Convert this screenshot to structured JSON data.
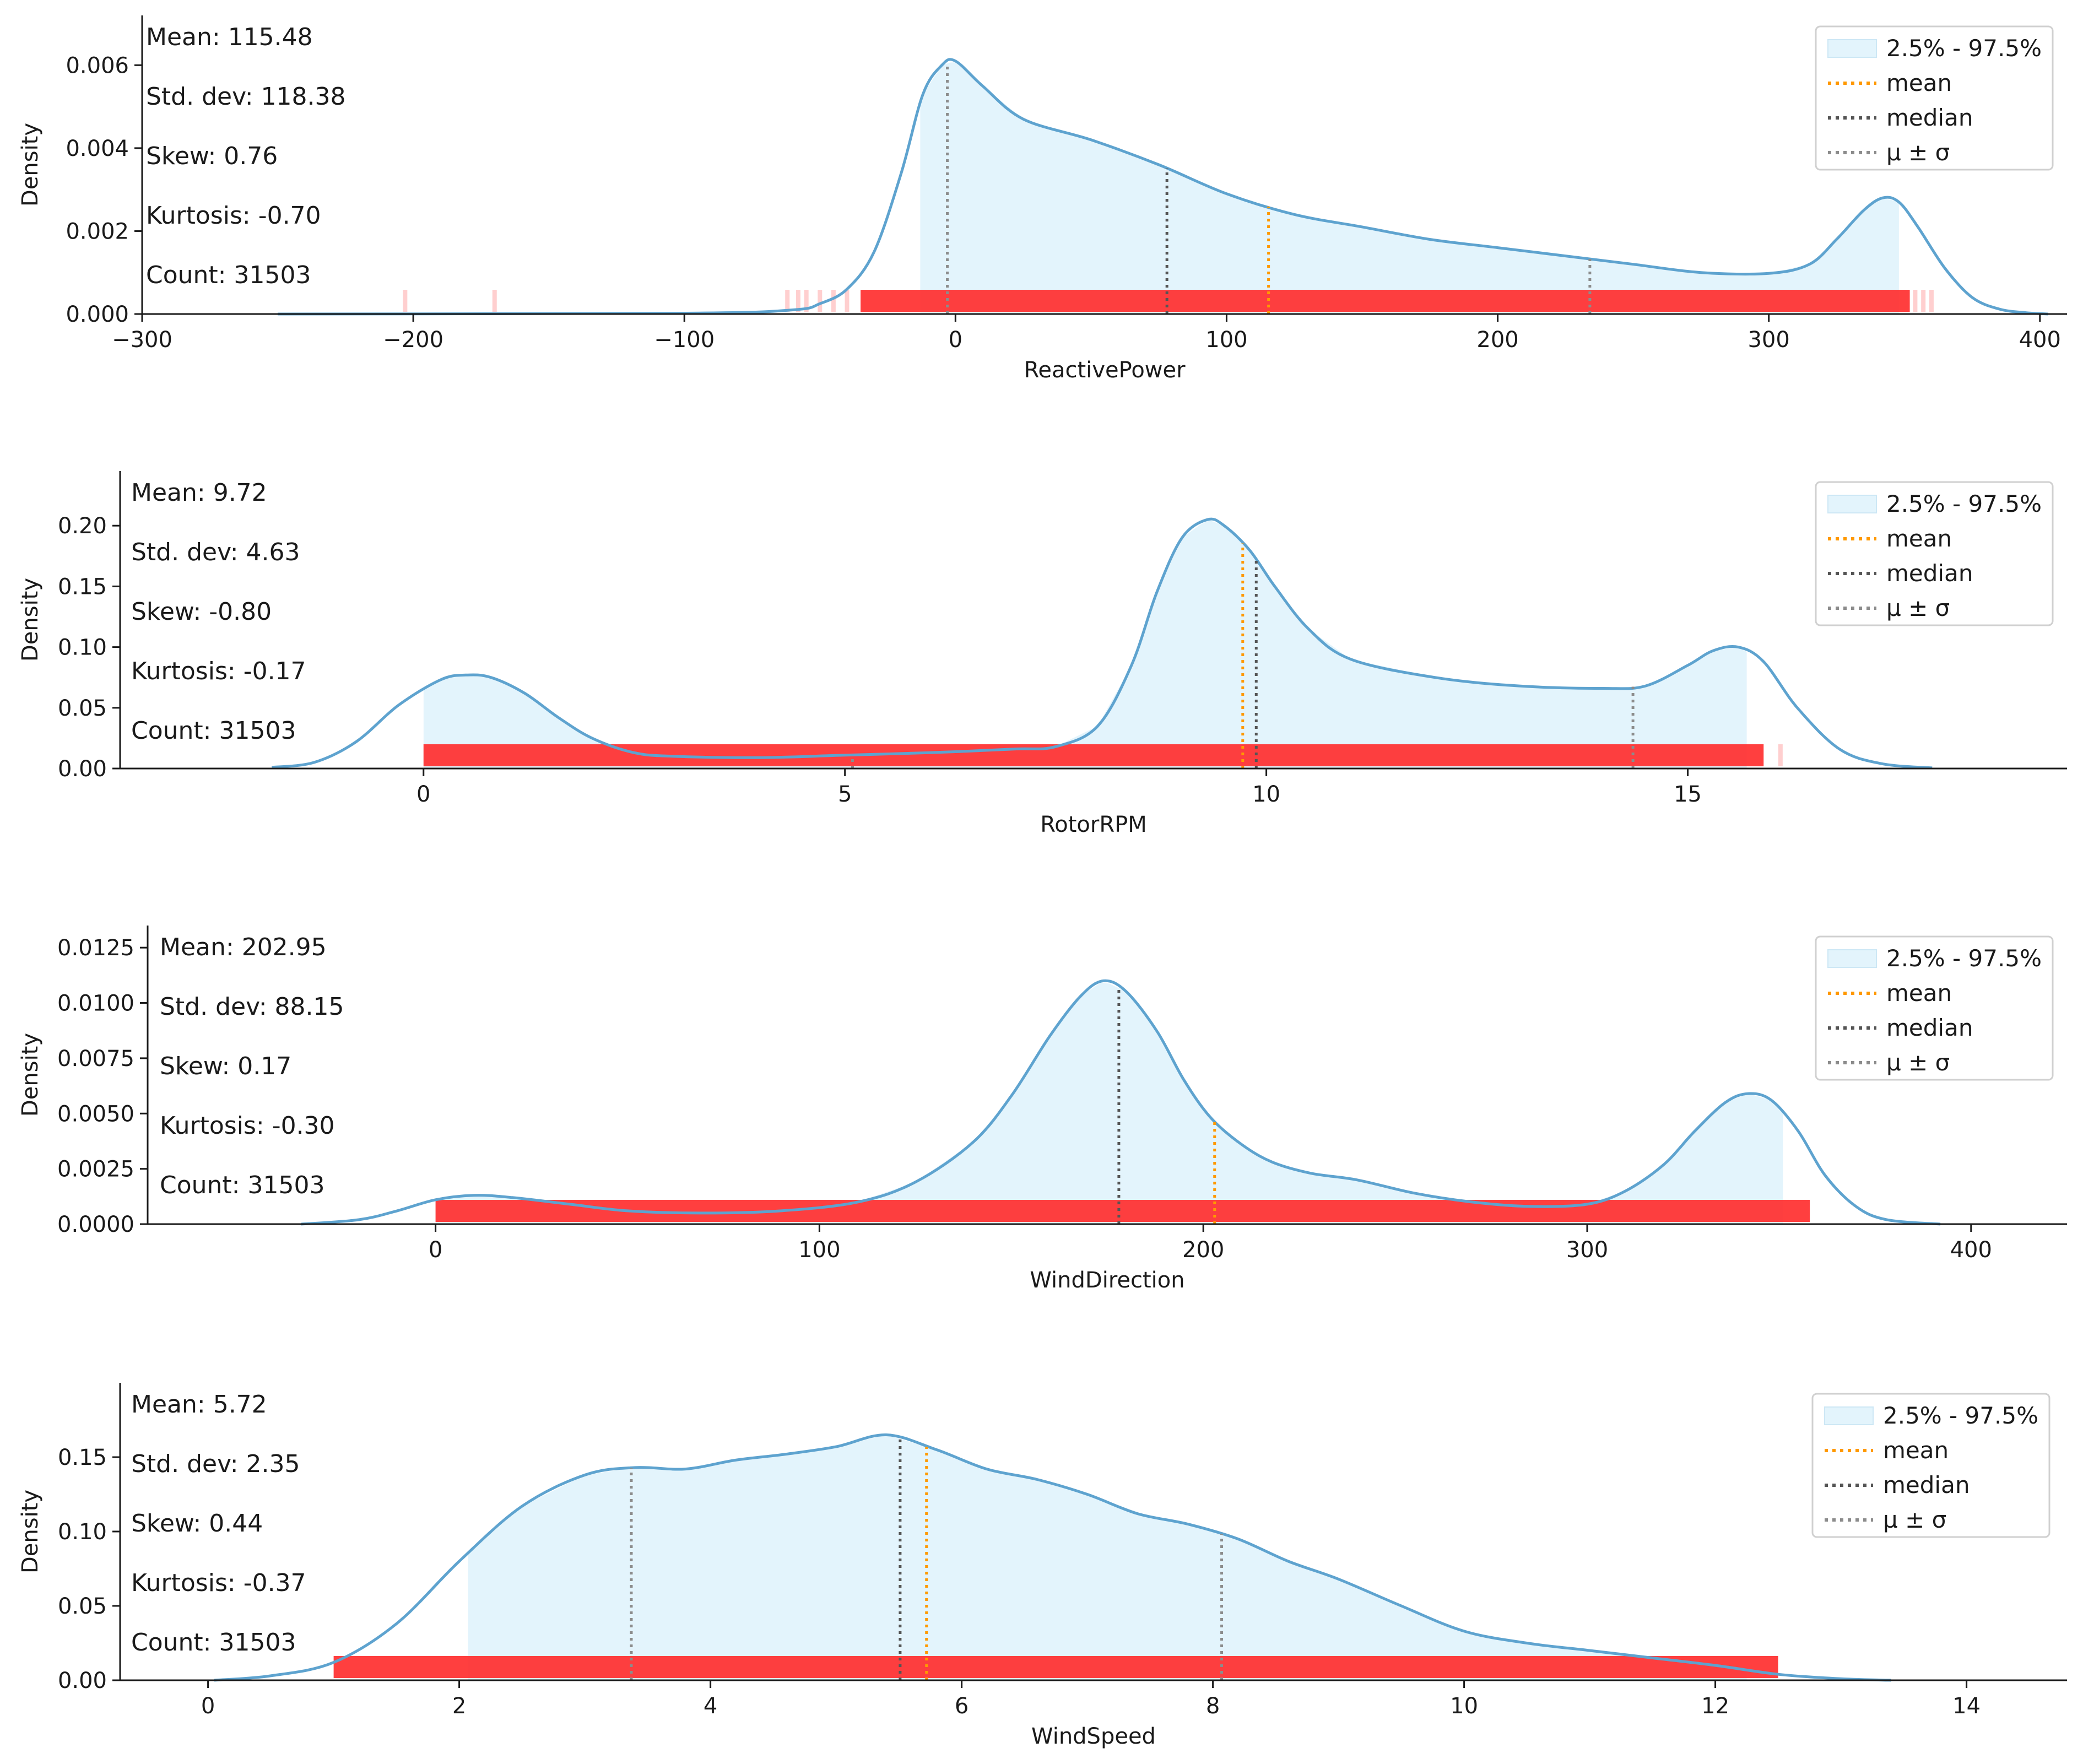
{
  "colors": {
    "kde_line": "#5ea3cf",
    "fill": "#e3f4fc",
    "rug": "#ff2a2a",
    "mean": "#ff9900",
    "median": "#555555",
    "sigma": "#8c8c8c",
    "axis": "#1a1a1a"
  },
  "legend_labels": [
    "2.5% - 97.5%",
    "mean",
    "median",
    "μ ± σ"
  ],
  "chart_data": [
    {
      "type": "line",
      "xlabel": "ReactivePower",
      "ylabel": "Density",
      "xlim": [
        -300,
        410
      ],
      "ylim": [
        0,
        0.0072
      ],
      "xticks": [
        -300,
        -200,
        -100,
        0,
        100,
        200,
        300,
        400
      ],
      "xtick_labels": [
        "−300",
        "−200",
        "−100",
        "0",
        "100",
        "200",
        "300",
        "400"
      ],
      "yticks": [
        0,
        0.002,
        0.004,
        0.006
      ],
      "ytick_labels": [
        "0.000",
        "0.002",
        "0.004",
        "0.006"
      ],
      "stats": [
        "Mean: 115.48",
        "Std. dev: 118.38",
        "Skew: 0.76",
        "Kurtosis: -0.70",
        "Count: 31503"
      ],
      "mean": 115.48,
      "median": 78,
      "sigma_lines": [
        -3,
        234
      ],
      "fill_range": [
        -13,
        348
      ],
      "rug_range": [
        -35,
        352
      ],
      "rug_sparse": [
        -203,
        -170,
        -62,
        -58,
        -55,
        -50,
        -45,
        -40,
        354,
        357,
        360
      ],
      "kde": {
        "x": [
          -250,
          -100,
          -60,
          -50,
          -40,
          -30,
          -20,
          -12,
          -5,
          0,
          10,
          25,
          50,
          75,
          100,
          125,
          150,
          175,
          200,
          225,
          250,
          275,
          300,
          315,
          325,
          335,
          342,
          348,
          355,
          365,
          375,
          385,
          395,
          403
        ],
        "y": [
          0,
          2e-05,
          0.0001,
          0.00025,
          0.0006,
          0.0015,
          0.0034,
          0.0053,
          0.006,
          0.0061,
          0.0055,
          0.0047,
          0.0042,
          0.0036,
          0.0029,
          0.0024,
          0.0021,
          0.0018,
          0.0016,
          0.0014,
          0.0012,
          0.001,
          0.00098,
          0.0012,
          0.0018,
          0.0025,
          0.0028,
          0.0027,
          0.0021,
          0.0011,
          0.0004,
          0.00012,
          3e-05,
          0
        ]
      }
    },
    {
      "type": "line",
      "xlabel": "RotorRPM",
      "ylabel": "Density",
      "xlim": [
        -3.6,
        19.5
      ],
      "ylim": [
        0,
        0.245
      ],
      "xticks": [
        0,
        5,
        10,
        15
      ],
      "xtick_labels": [
        "0",
        "5",
        "10",
        "15"
      ],
      "yticks": [
        0,
        0.05,
        0.1,
        0.15,
        0.2
      ],
      "ytick_labels": [
        "0.00",
        "0.05",
        "0.10",
        "0.15",
        "0.20"
      ],
      "stats": [
        "Mean: 9.72",
        "Std. dev: 4.63",
        "Skew: -0.80",
        "Kurtosis: -0.17",
        "Count: 31503"
      ],
      "mean": 9.72,
      "median": 9.88,
      "sigma_lines": [
        5.09,
        14.35
      ],
      "fill_range": [
        0,
        15.7
      ],
      "rug_range": [
        0,
        15.9
      ],
      "rug_sparse": [
        16.1
      ],
      "kde": {
        "x": [
          -1.8,
          -1.3,
          -0.8,
          -0.3,
          0.2,
          0.5,
          0.8,
          1.2,
          1.6,
          2.0,
          2.5,
          3.0,
          4.0,
          5.0,
          6.0,
          7.0,
          7.5,
          8.0,
          8.4,
          8.7,
          9.0,
          9.3,
          9.5,
          9.8,
          10.1,
          10.5,
          11.0,
          12.0,
          13.0,
          14.0,
          14.5,
          15.0,
          15.3,
          15.6,
          15.9,
          16.3,
          16.8,
          17.3,
          17.9
        ],
        "y": [
          0.001,
          0.005,
          0.022,
          0.052,
          0.073,
          0.077,
          0.075,
          0.062,
          0.042,
          0.025,
          0.013,
          0.01,
          0.009,
          0.011,
          0.013,
          0.016,
          0.018,
          0.035,
          0.085,
          0.145,
          0.19,
          0.205,
          0.2,
          0.18,
          0.15,
          0.115,
          0.09,
          0.075,
          0.068,
          0.066,
          0.068,
          0.085,
          0.097,
          0.1,
          0.088,
          0.05,
          0.016,
          0.004,
          0.0005
        ]
      }
    },
    {
      "type": "line",
      "xlabel": "WindDirection",
      "ylabel": "Density",
      "xlim": [
        -75,
        425
      ],
      "ylim": [
        0,
        0.0135
      ],
      "xticks": [
        0,
        100,
        200,
        300,
        400
      ],
      "xtick_labels": [
        "0",
        "100",
        "200",
        "300",
        "400"
      ],
      "yticks": [
        0,
        0.0025,
        0.005,
        0.0075,
        0.01,
        0.0125
      ],
      "ytick_labels": [
        "0.0000",
        "0.0025",
        "0.0050",
        "0.0075",
        "0.0100",
        "0.0125"
      ],
      "stats": [
        "Mean: 202.95",
        "Std. dev: 88.15",
        "Skew: 0.17",
        "Kurtosis: -0.30",
        "Count: 31503"
      ],
      "mean": 202.95,
      "median": 178,
      "sigma_lines": [],
      "fill_range": [
        0,
        351
      ],
      "rug_range": [
        0,
        358
      ],
      "rug_sparse": [],
      "kde": {
        "x": [
          -35,
          -20,
          -10,
          0,
          10,
          20,
          35,
          50,
          70,
          90,
          110,
          125,
          140,
          150,
          160,
          168,
          174,
          180,
          188,
          195,
          202,
          210,
          218,
          228,
          240,
          255,
          270,
          285,
          300,
          310,
          320,
          328,
          336,
          342,
          348,
          355,
          362,
          370,
          378,
          392
        ],
        "y": [
          0,
          0.0002,
          0.0006,
          0.0011,
          0.0013,
          0.0012,
          0.0009,
          0.0006,
          0.0005,
          0.0006,
          0.001,
          0.0019,
          0.0037,
          0.0058,
          0.0085,
          0.0103,
          0.011,
          0.0105,
          0.0087,
          0.0065,
          0.0048,
          0.0036,
          0.0028,
          0.0023,
          0.002,
          0.0014,
          0.001,
          0.0008,
          0.0009,
          0.0015,
          0.0027,
          0.0042,
          0.0055,
          0.0059,
          0.0056,
          0.0042,
          0.0022,
          0.0008,
          0.0002,
          0
        ]
      }
    },
    {
      "type": "line",
      "xlabel": "WindSpeed",
      "ylabel": "Density",
      "xlim": [
        -0.7,
        14.8
      ],
      "ylim": [
        0,
        0.2
      ],
      "xticks": [
        0,
        2,
        4,
        6,
        8,
        10,
        12,
        14
      ],
      "xtick_labels": [
        "0",
        "2",
        "4",
        "6",
        "8",
        "10",
        "12",
        "14"
      ],
      "yticks": [
        0,
        0.05,
        0.1,
        0.15
      ],
      "ytick_labels": [
        "0.00",
        "0.05",
        "0.10",
        "0.15"
      ],
      "stats": [
        "Mean: 5.72",
        "Std. dev: 2.35",
        "Skew: 0.44",
        "Kurtosis: -0.37",
        "Count: 31503"
      ],
      "mean": 5.72,
      "median": 5.51,
      "sigma_lines": [
        3.37,
        8.07
      ],
      "fill_range": [
        2.07,
        12.25
      ],
      "rug_range": [
        1.0,
        12.5
      ],
      "rug_sparse": [],
      "kde": {
        "x": [
          0.05,
          0.5,
          1.0,
          1.5,
          2.0,
          2.5,
          3.0,
          3.4,
          3.8,
          4.2,
          4.6,
          5.0,
          5.4,
          5.8,
          6.2,
          6.6,
          7.0,
          7.4,
          7.8,
          8.2,
          8.6,
          9.0,
          9.5,
          10.0,
          10.5,
          11.0,
          11.5,
          12.0,
          12.5,
          13.0,
          13.4
        ],
        "y": [
          0,
          0.003,
          0.012,
          0.038,
          0.08,
          0.117,
          0.138,
          0.143,
          0.142,
          0.148,
          0.152,
          0.157,
          0.165,
          0.155,
          0.142,
          0.135,
          0.125,
          0.112,
          0.105,
          0.095,
          0.08,
          0.068,
          0.05,
          0.033,
          0.025,
          0.02,
          0.015,
          0.01,
          0.004,
          0.001,
          0
        ]
      }
    }
  ]
}
